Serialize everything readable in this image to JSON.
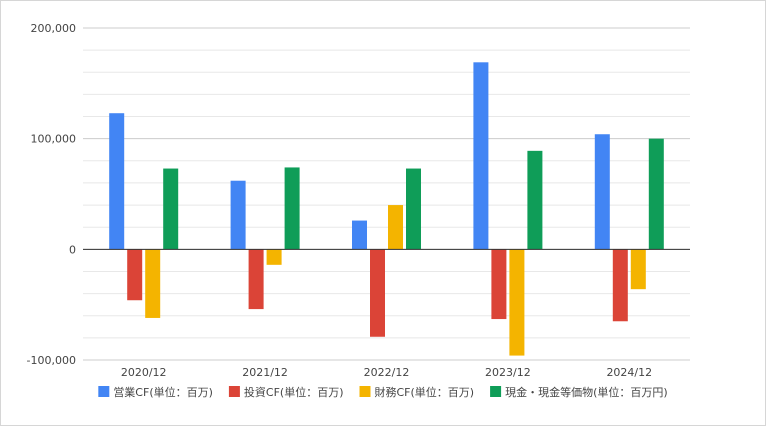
{
  "chart_data": {
    "type": "bar",
    "categories": [
      "2020/12",
      "2021/12",
      "2022/12",
      "2023/12",
      "2024/12"
    ],
    "series": [
      {
        "name": "営業CF(単位：百万)",
        "color": "#4285F4",
        "values": [
          123000,
          62000,
          26000,
          169000,
          104000
        ]
      },
      {
        "name": "投資CF(単位：百万)",
        "color": "#DB4437",
        "values": [
          -46000,
          -54000,
          -79000,
          -63000,
          -65000
        ]
      },
      {
        "name": "財務CF(単位：百万)",
        "color": "#F4B400",
        "values": [
          -62000,
          -14000,
          40000,
          -96000,
          -36000
        ]
      },
      {
        "name": "現金・現金等価物(単位：百万円)",
        "color": "#0F9D58",
        "values": [
          73000,
          74000,
          73000,
          89000,
          100000
        ]
      }
    ],
    "yticks": [
      200000,
      100000,
      0,
      -100000
    ],
    "ytick_labels": [
      "200,000",
      "100,000",
      "0",
      "-100,000"
    ],
    "ylim": [
      -100000,
      200000
    ],
    "grid": true,
    "legend_position": "bottom"
  }
}
